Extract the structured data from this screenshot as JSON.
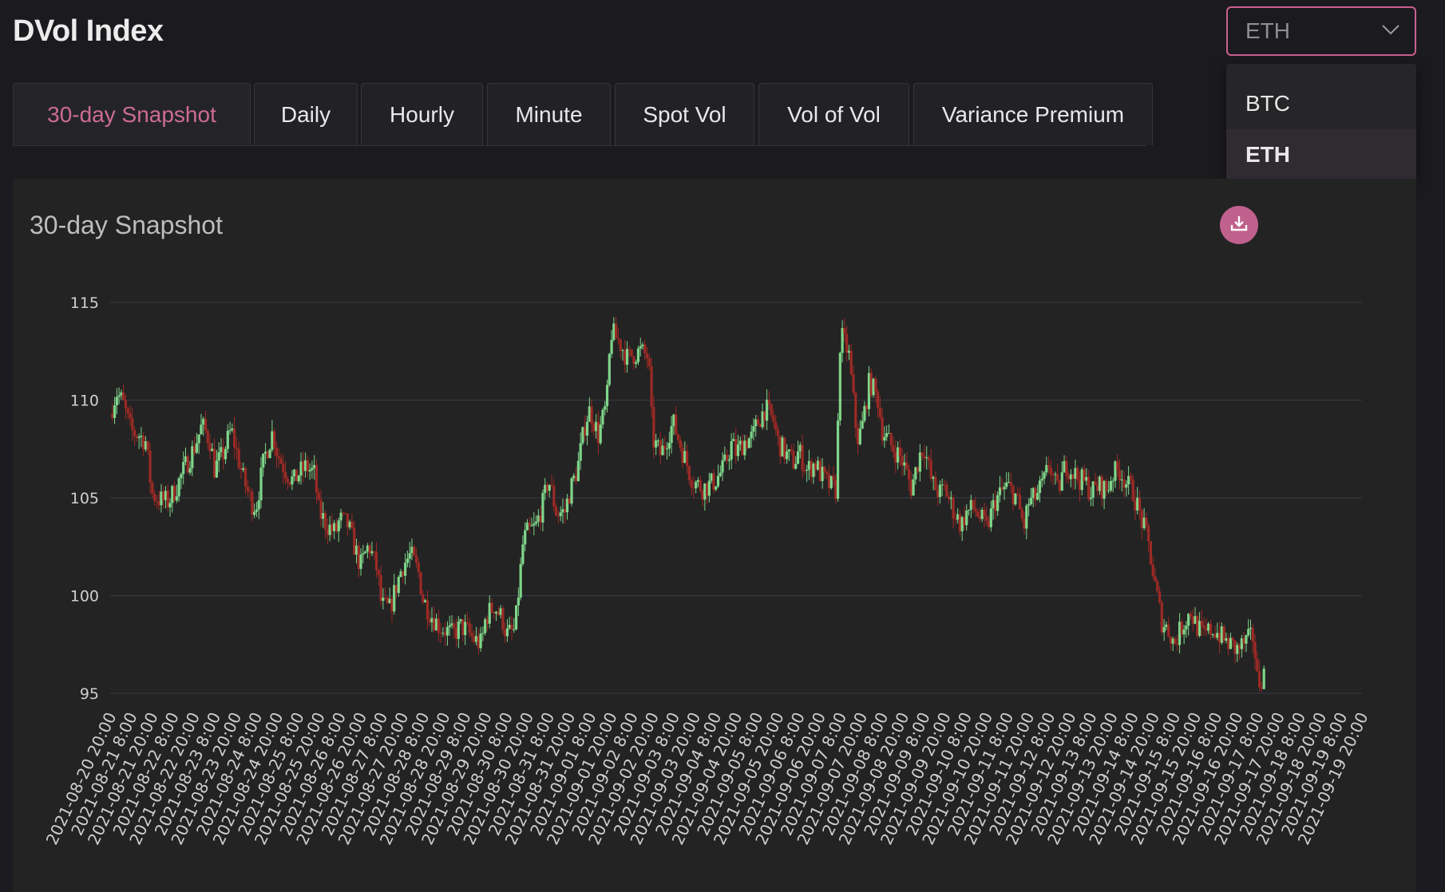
{
  "header": {
    "title": "DVol Index"
  },
  "currency_select": {
    "value": "ETH",
    "options": [
      {
        "label": "BTC"
      },
      {
        "label": "ETH"
      }
    ]
  },
  "tabs": [
    {
      "label": "30-day Snapshot"
    },
    {
      "label": "Daily"
    },
    {
      "label": "Hourly"
    },
    {
      "label": "Minute"
    },
    {
      "label": "Spot Vol"
    },
    {
      "label": "Vol of Vol"
    },
    {
      "label": "Variance Premium"
    }
  ],
  "card": {
    "title": "30-day Snapshot",
    "download_icon": "download-icon"
  },
  "colors": {
    "accent": "#c9608f",
    "up": "#7fd68a",
    "down": "#9c2a25",
    "grid": "#3a3a4a"
  },
  "chart_data": {
    "type": "candlestick",
    "title": "",
    "xlabel": "",
    "ylabel": "",
    "ylim": [
      95,
      115
    ],
    "yticks": [
      95,
      100,
      105,
      110,
      115
    ],
    "grid": true,
    "xticks": [
      "2021-08-20 20:00",
      "2021-08-21 8:00",
      "2021-08-21 20:00",
      "2021-08-22 8:00",
      "2021-08-22 20:00",
      "2021-08-23 8:00",
      "2021-08-23 20:00",
      "2021-08-24 8:00",
      "2021-08-24 20:00",
      "2021-08-25 8:00",
      "2021-08-25 20:00",
      "2021-08-26 8:00",
      "2021-08-26 20:00",
      "2021-08-27 8:00",
      "2021-08-27 20:00",
      "2021-08-28 8:00",
      "2021-08-28 20:00",
      "2021-08-29 8:00",
      "2021-08-29 20:00",
      "2021-08-30 8:00",
      "2021-08-30 20:00",
      "2021-08-31 8:00",
      "2021-08-31 20:00",
      "2021-09-01 8:00",
      "2021-09-01 20:00",
      "2021-09-02 8:00",
      "2021-09-02 20:00",
      "2021-09-03 8:00",
      "2021-09-03 20:00",
      "2021-09-04 8:00",
      "2021-09-04 20:00",
      "2021-09-05 8:00",
      "2021-09-05 20:00",
      "2021-09-06 8:00",
      "2021-09-06 20:00",
      "2021-09-07 8:00",
      "2021-09-07 20:00",
      "2021-09-08 8:00",
      "2021-09-08 20:00",
      "2021-09-09 8:00",
      "2021-09-09 20:00",
      "2021-09-10 8:00",
      "2021-09-10 20:00",
      "2021-09-11 8:00",
      "2021-09-11 20:00",
      "2021-09-12 8:00",
      "2021-09-12 20:00",
      "2021-09-13 8:00",
      "2021-09-13 20:00",
      "2021-09-14 8:00",
      "2021-09-14 20:00",
      "2021-09-15 8:00",
      "2021-09-15 20:00",
      "2021-09-16 8:00",
      "2021-09-16 20:00",
      "2021-09-17 8:00",
      "2021-09-17 20:00",
      "2021-09-18 8:00",
      "2021-09-18 20:00",
      "2021-09-19 8:00",
      "2021-09-19 20:00"
    ],
    "close_series": [
      [
        0,
        109.3
      ],
      [
        0.3,
        110.4
      ],
      [
        0.6,
        109.9
      ],
      [
        1,
        108.4
      ],
      [
        1.4,
        108.2
      ],
      [
        1.7,
        107.9
      ],
      [
        2,
        105.2
      ],
      [
        2.4,
        104.9
      ],
      [
        2.8,
        104.8
      ],
      [
        3.2,
        105.6
      ],
      [
        3.6,
        106.6
      ],
      [
        4,
        107.5
      ],
      [
        4.4,
        108.7
      ],
      [
        4.8,
        107.9
      ],
      [
        5,
        106.5
      ],
      [
        5.4,
        107.2
      ],
      [
        5.8,
        108.5
      ],
      [
        6,
        107.6
      ],
      [
        6.4,
        105.9
      ],
      [
        6.8,
        104.7
      ],
      [
        7,
        104.6
      ],
      [
        7.4,
        107.1
      ],
      [
        7.8,
        108.4
      ],
      [
        8,
        107.3
      ],
      [
        8.4,
        106.4
      ],
      [
        8.8,
        105.8
      ],
      [
        9,
        106.2
      ],
      [
        9.4,
        106.6
      ],
      [
        9.8,
        106.2
      ],
      [
        10,
        104.3
      ],
      [
        10.4,
        103.6
      ],
      [
        10.8,
        103.2
      ],
      [
        11,
        103.9
      ],
      [
        11.4,
        103.6
      ],
      [
        11.8,
        102.2
      ],
      [
        12,
        101.5
      ],
      [
        12.4,
        102.6
      ],
      [
        12.8,
        101.3
      ],
      [
        13,
        99.5
      ],
      [
        13.4,
        99.3
      ],
      [
        13.8,
        100.8
      ],
      [
        14,
        101.5
      ],
      [
        14.4,
        102.1
      ],
      [
        14.8,
        101.1
      ],
      [
        15,
        99.8
      ],
      [
        15.4,
        99.0
      ],
      [
        15.8,
        98.4
      ],
      [
        16,
        98.3
      ],
      [
        16.4,
        98.0
      ],
      [
        16.8,
        98.4
      ],
      [
        17,
        98.3
      ],
      [
        17.4,
        97.8
      ],
      [
        17.8,
        97.5
      ],
      [
        18,
        98.9
      ],
      [
        18.4,
        99.5
      ],
      [
        18.8,
        98.8
      ],
      [
        19,
        98.0
      ],
      [
        19.4,
        98.2
      ],
      [
        19.8,
        102.8
      ],
      [
        20,
        103.2
      ],
      [
        20.4,
        103.5
      ],
      [
        20.8,
        104.9
      ],
      [
        21,
        106.0
      ],
      [
        21.4,
        104.2
      ],
      [
        21.8,
        104.3
      ],
      [
        22,
        105.2
      ],
      [
        22.4,
        106.5
      ],
      [
        22.8,
        109.0
      ],
      [
        23,
        109.5
      ],
      [
        23.4,
        108.2
      ],
      [
        23.8,
        109.8
      ],
      [
        24,
        113.5
      ],
      [
        24.4,
        113.0
      ],
      [
        24.8,
        112.1
      ],
      [
        25,
        112.3
      ],
      [
        25.4,
        112.5
      ],
      [
        25.8,
        112.2
      ],
      [
        26,
        108.0
      ],
      [
        26.4,
        107.2
      ],
      [
        26.8,
        108.4
      ],
      [
        27,
        108.8
      ],
      [
        27.4,
        107.5
      ],
      [
        27.8,
        106.2
      ],
      [
        28,
        105.8
      ],
      [
        28.4,
        105.5
      ],
      [
        28.8,
        105.7
      ],
      [
        29,
        105.9
      ],
      [
        29.4,
        106.5
      ],
      [
        29.8,
        107.8
      ],
      [
        30,
        107.3
      ],
      [
        30.4,
        107.9
      ],
      [
        30.8,
        108.1
      ],
      [
        31,
        108.8
      ],
      [
        31.4,
        109.6
      ],
      [
        31.8,
        108.9
      ],
      [
        32,
        107.9
      ],
      [
        32.4,
        107.2
      ],
      [
        32.8,
        106.8
      ],
      [
        33,
        107.4
      ],
      [
        33.4,
        106.4
      ],
      [
        33.8,
        106.8
      ],
      [
        34,
        106.3
      ],
      [
        34.4,
        105.7
      ],
      [
        34.8,
        105.4
      ],
      [
        35,
        113.4
      ],
      [
        35.4,
        112.4
      ],
      [
        35.8,
        108.0
      ],
      [
        36,
        108.4
      ],
      [
        36.4,
        111.0
      ],
      [
        36.8,
        110.0
      ],
      [
        37,
        108.5
      ],
      [
        37.4,
        107.7
      ],
      [
        37.8,
        107.2
      ],
      [
        38,
        106.8
      ],
      [
        38.4,
        105.5
      ],
      [
        38.8,
        107.2
      ],
      [
        39,
        107.7
      ],
      [
        39.4,
        105.7
      ],
      [
        39.8,
        105.2
      ],
      [
        40,
        105.5
      ],
      [
        40.4,
        104.4
      ],
      [
        40.8,
        103.6
      ],
      [
        41,
        104.2
      ],
      [
        41.4,
        104.5
      ],
      [
        41.8,
        103.8
      ],
      [
        42,
        103.4
      ],
      [
        42.4,
        104.8
      ],
      [
        42.8,
        105.4
      ],
      [
        43,
        105.6
      ],
      [
        43.4,
        105.1
      ],
      [
        43.8,
        103.5
      ],
      [
        44,
        104.7
      ],
      [
        44.4,
        105.1
      ],
      [
        44.8,
        105.9
      ],
      [
        45,
        106.8
      ],
      [
        45.4,
        105.3
      ],
      [
        45.8,
        106.7
      ],
      [
        46,
        106.5
      ],
      [
        46.4,
        106.0
      ],
      [
        46.8,
        105.7
      ],
      [
        47,
        105.3
      ],
      [
        47.4,
        105.6
      ],
      [
        47.8,
        105.4
      ],
      [
        48,
        106.2
      ],
      [
        48.4,
        106.4
      ],
      [
        48.8,
        105.6
      ],
      [
        49,
        105.4
      ],
      [
        49.4,
        104.0
      ],
      [
        49.8,
        102.5
      ],
      [
        50,
        101.0
      ],
      [
        50.4,
        98.7
      ],
      [
        50.8,
        98.1
      ],
      [
        51,
        97.5
      ],
      [
        51.4,
        98.5
      ],
      [
        51.8,
        99.2
      ],
      [
        52,
        98.6
      ],
      [
        52.4,
        97.9
      ],
      [
        52.8,
        98.3
      ],
      [
        53,
        98.2
      ],
      [
        53.4,
        97.7
      ],
      [
        53.8,
        97.4
      ],
      [
        54,
        97.2
      ],
      [
        54.4,
        97.6
      ],
      [
        54.8,
        97.9
      ],
      [
        55,
        95.5
      ],
      [
        55.3,
        96.0
      ]
    ]
  }
}
